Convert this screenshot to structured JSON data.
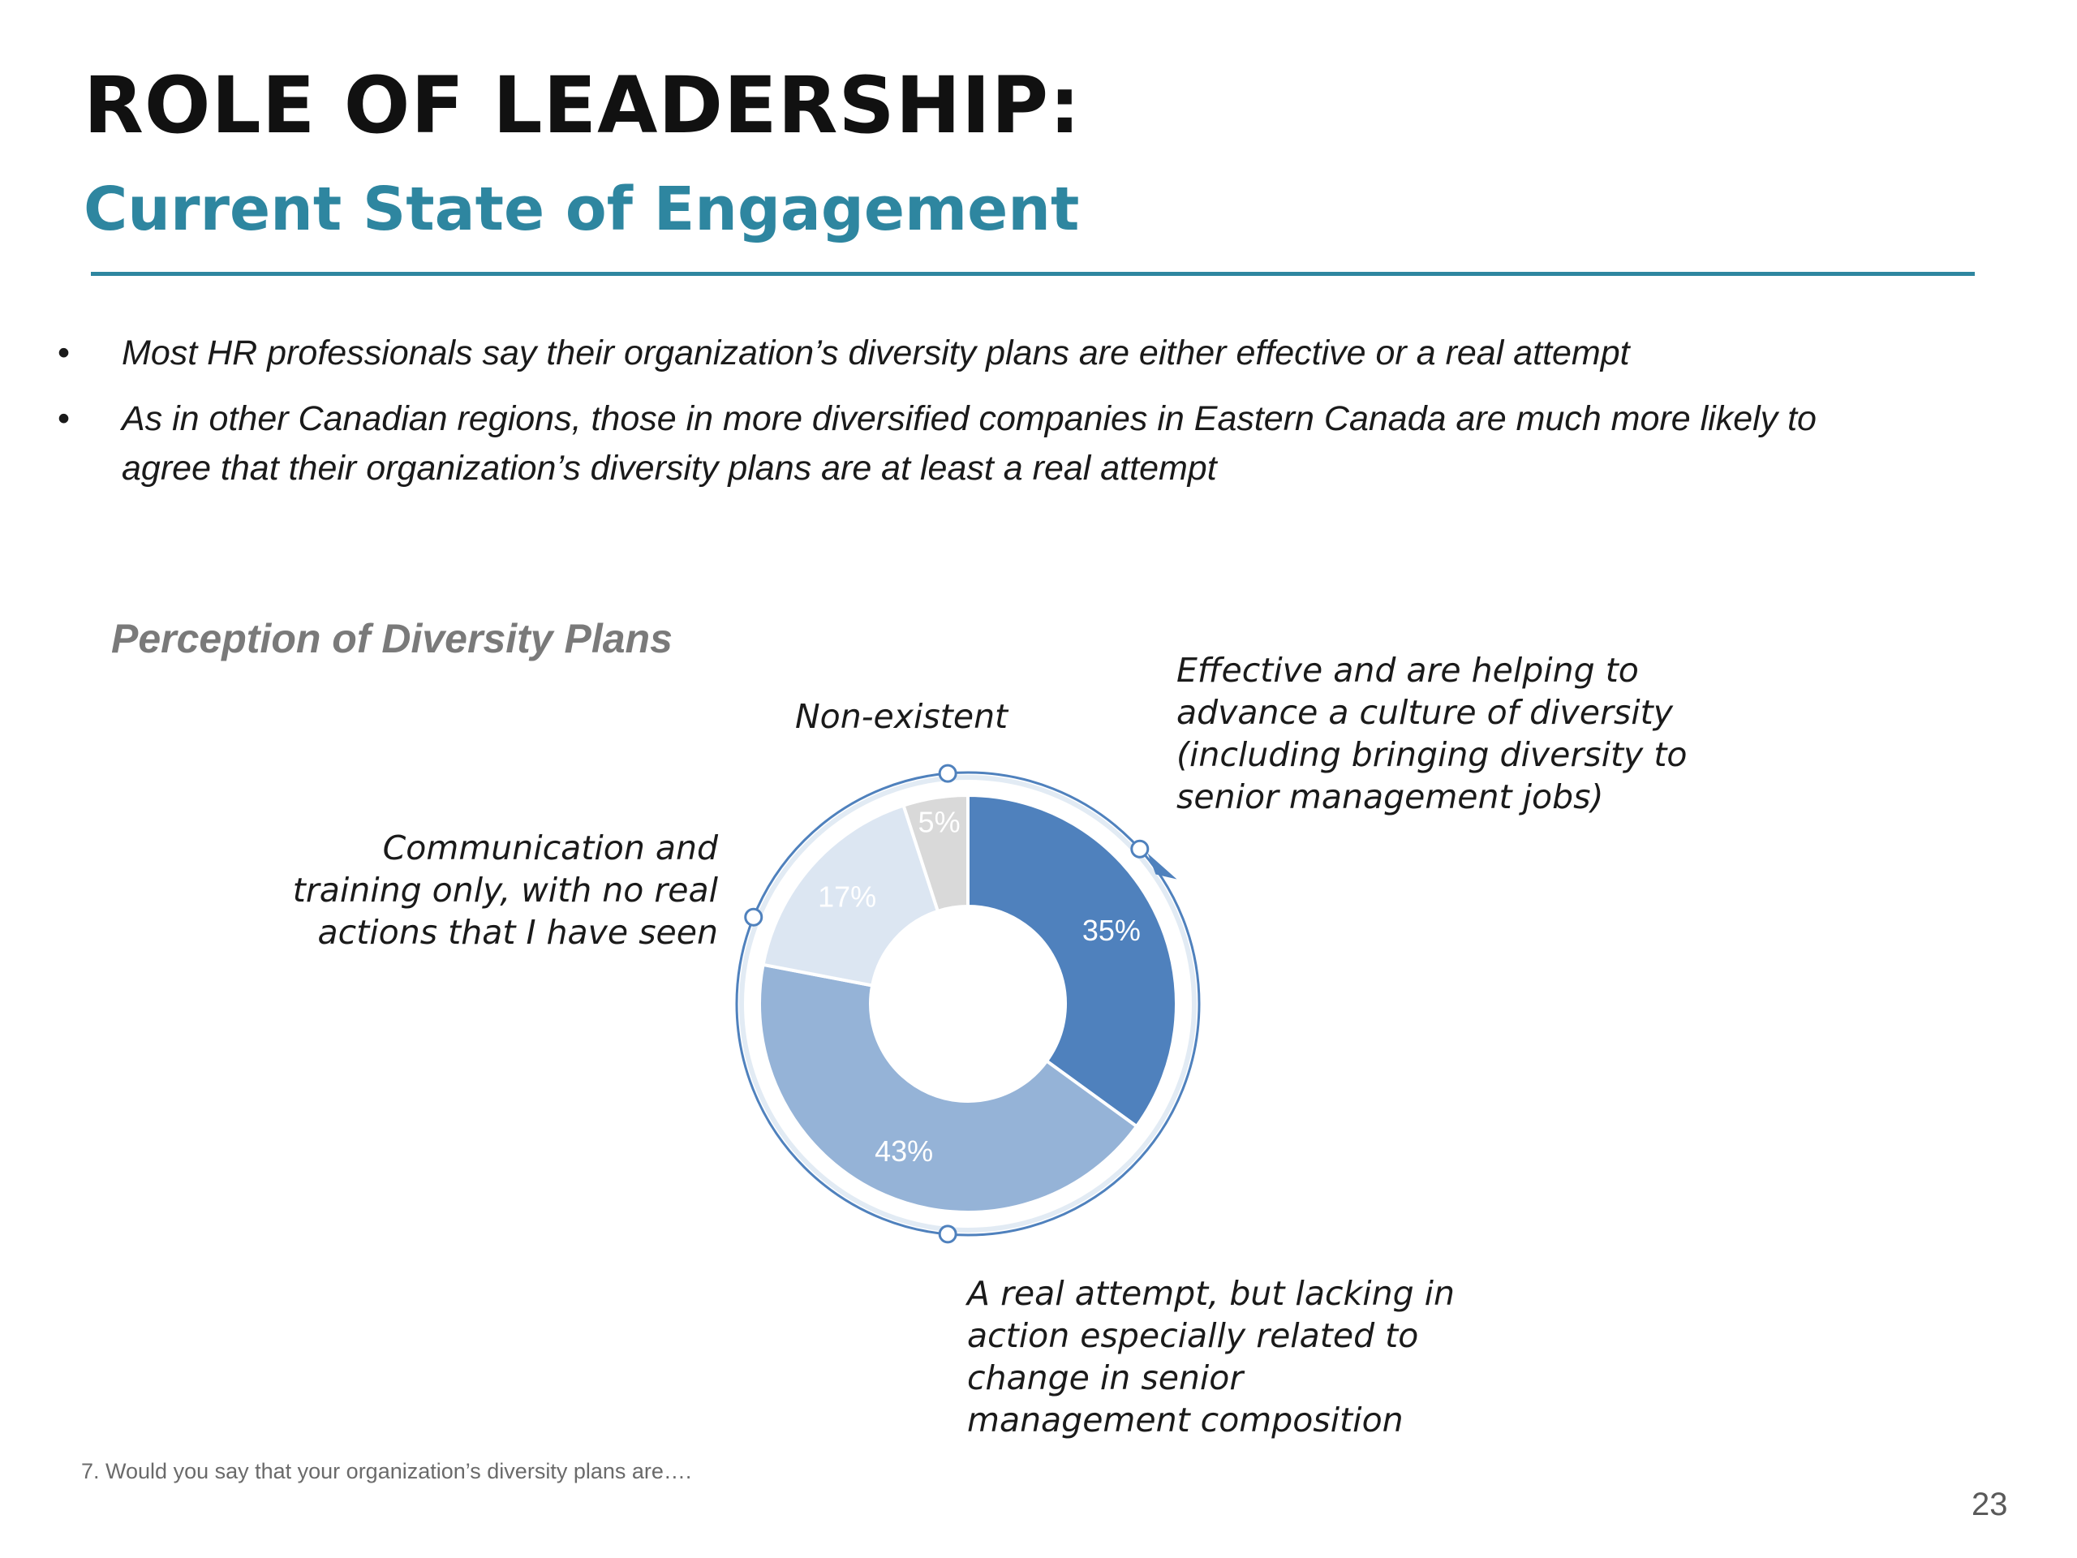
{
  "header": {
    "title": "ROLE OF LEADERSHIP:",
    "subtitle": "Current State of Engagement"
  },
  "bullets": [
    "Most HR professionals say their organization’s diversity plans are either effective or a real attempt",
    "As in other Canadian regions, those in more diversified companies in Eastern Canada are much more likely to agree that their organization’s diversity plans are at least a real attempt"
  ],
  "bullet_symbol": "•",
  "callouts": {
    "effective": "Effective and are helping to advance a culture of diversity (including bringing diversity to senior management jobs)",
    "nonexistent": "Non-existent",
    "communication": "Communication and training only, with no real actions that I have seen",
    "attempt": "A real attempt, but lacking in action especially related to change in senior management composition"
  },
  "chart_data": {
    "type": "pie",
    "title": "Perception of Diversity Plans",
    "hole": true,
    "start_angle_deg": 0,
    "direction": "clockwise",
    "slices": [
      {
        "label": "Effective and are helping to advance a culture of diversity (including bringing diversity to senior management jobs)",
        "value": 35,
        "display": "35%",
        "color": "#4f81bd",
        "label_color": "#ffffff"
      },
      {
        "label": "A real attempt, but lacking in action especially related to change in senior management composition",
        "value": 43,
        "display": "43%",
        "color": "#95b3d7",
        "label_color": "#ffffff"
      },
      {
        "label": "Communication and training only, with no real actions that I have seen",
        "value": 17,
        "display": "17%",
        "color": "#dce6f2",
        "label_color": "#ffffff"
      },
      {
        "label": "Non-existent",
        "value": 5,
        "display": "5%",
        "color": "#d9d9d9",
        "label_color": "#ffffff"
      }
    ],
    "ring_color": "#4f81bd"
  },
  "footnote": "7. Would you say that your organization’s diversity plans are….",
  "page_number": "23"
}
